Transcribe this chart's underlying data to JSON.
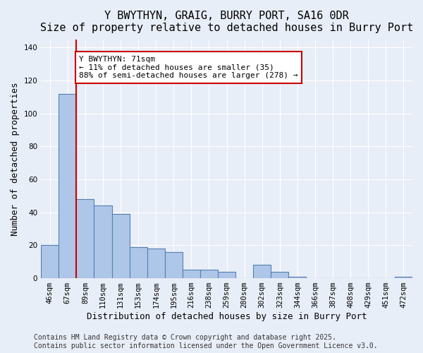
{
  "title": "Y BWYTHYN, GRAIG, BURRY PORT, SA16 0DR",
  "subtitle": "Size of property relative to detached houses in Burry Port",
  "xlabel": "Distribution of detached houses by size in Burry Port",
  "ylabel": "Number of detached properties",
  "bar_values": [
    20,
    112,
    48,
    44,
    39,
    19,
    18,
    16,
    5,
    5,
    4,
    0,
    8,
    4,
    1,
    0,
    0,
    0,
    0,
    0,
    1
  ],
  "categories": [
    "46sqm",
    "67sqm",
    "89sqm",
    "110sqm",
    "131sqm",
    "153sqm",
    "174sqm",
    "195sqm",
    "216sqm",
    "238sqm",
    "259sqm",
    "280sqm",
    "302sqm",
    "323sqm",
    "344sqm",
    "366sqm",
    "387sqm",
    "408sqm",
    "429sqm",
    "451sqm",
    "472sqm"
  ],
  "bar_color": "#aec6e8",
  "bar_edge_color": "#5580b0",
  "property_line_x": 1.5,
  "property_line_color": "#cc0000",
  "annotation_text": "Y BWYTHYN: 71sqm\n← 11% of detached houses are smaller (35)\n88% of semi-detached houses are larger (278) →",
  "annotation_box_color": "#ffffff",
  "annotation_edge_color": "#cc0000",
  "ylim": [
    0,
    145
  ],
  "yticks": [
    0,
    20,
    40,
    60,
    80,
    100,
    120,
    140
  ],
  "background_color": "#e8eef7",
  "grid_color": "#ffffff",
  "footer": "Contains HM Land Registry data © Crown copyright and database right 2025.\nContains public sector information licensed under the Open Government Licence v3.0.",
  "title_fontsize": 11,
  "xlabel_fontsize": 9,
  "ylabel_fontsize": 9,
  "tick_fontsize": 7.5,
  "footer_fontsize": 7
}
